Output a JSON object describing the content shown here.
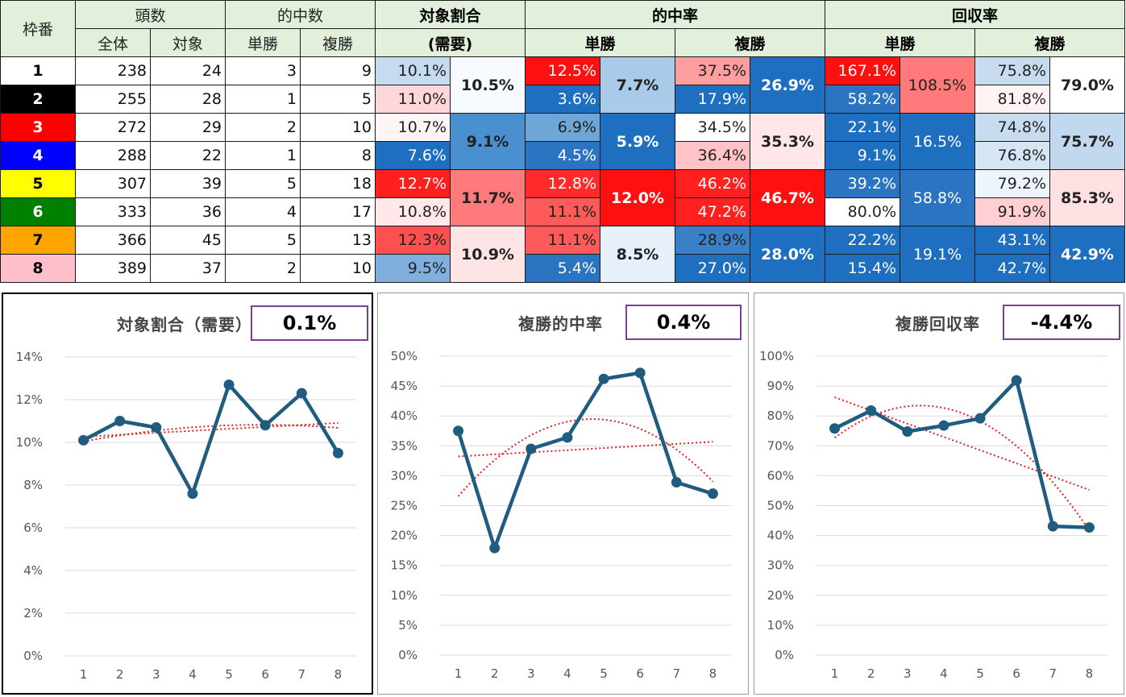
{
  "table": {
    "headers": {
      "waku": "枠番",
      "count": "頭数",
      "count_all": "全体",
      "count_target": "対象",
      "hits": "的中数",
      "hits_win": "単勝",
      "hits_place": "複勝",
      "share": "対象割合",
      "share_sub": "(需要)",
      "hit_rate": "的中率",
      "hit_rate_win": "単勝",
      "hit_rate_place": "複勝",
      "return_rate": "回収率",
      "return_rate_win": "単勝",
      "return_rate_place": "複勝"
    },
    "rows": [
      {
        "waku": "1",
        "all": "238",
        "target": "24",
        "win_hits": "3",
        "place_hits": "9",
        "share": "10.1%",
        "win_rate": "12.5%",
        "place_rate": "37.5%",
        "win_return": "167.1%",
        "place_return": "75.8%"
      },
      {
        "waku": "2",
        "all": "255",
        "target": "28",
        "win_hits": "1",
        "place_hits": "5",
        "share": "11.0%",
        "win_rate": "3.6%",
        "place_rate": "17.9%",
        "win_return": "58.2%",
        "place_return": "81.8%"
      },
      {
        "waku": "3",
        "all": "272",
        "target": "29",
        "win_hits": "2",
        "place_hits": "10",
        "share": "10.7%",
        "win_rate": "6.9%",
        "place_rate": "34.5%",
        "win_return": "22.1%",
        "place_return": "74.8%"
      },
      {
        "waku": "4",
        "all": "288",
        "target": "22",
        "win_hits": "1",
        "place_hits": "8",
        "share": "7.6%",
        "win_rate": "4.5%",
        "place_rate": "36.4%",
        "win_return": "9.1%",
        "place_return": "76.8%"
      },
      {
        "waku": "5",
        "all": "307",
        "target": "39",
        "win_hits": "5",
        "place_hits": "18",
        "share": "12.7%",
        "win_rate": "12.8%",
        "place_rate": "46.2%",
        "win_return": "39.2%",
        "place_return": "79.2%"
      },
      {
        "waku": "6",
        "all": "333",
        "target": "36",
        "win_hits": "4",
        "place_hits": "17",
        "share": "10.8%",
        "win_rate": "11.1%",
        "place_rate": "47.2%",
        "win_return": "80.0%",
        "place_return": "91.9%"
      },
      {
        "waku": "7",
        "all": "366",
        "target": "45",
        "win_hits": "5",
        "place_hits": "13",
        "share": "12.3%",
        "win_rate": "11.1%",
        "place_rate": "28.9%",
        "win_return": "22.2%",
        "place_return": "43.1%"
      },
      {
        "waku": "8",
        "all": "389",
        "target": "37",
        "win_hits": "2",
        "place_hits": "10",
        "share": "9.5%",
        "win_rate": "5.4%",
        "place_rate": "27.0%",
        "win_return": "15.4%",
        "place_return": "42.7%"
      }
    ],
    "pairs": [
      {
        "share": "10.5%",
        "win_rate": "7.7%",
        "place_rate": "26.9%",
        "win_return": "108.5%",
        "place_return": "79.0%"
      },
      {
        "share": "9.1%",
        "win_rate": "5.9%",
        "place_rate": "35.3%",
        "win_return": "16.5%",
        "place_return": "75.7%"
      },
      {
        "share": "11.7%",
        "win_rate": "12.0%",
        "place_rate": "46.7%",
        "win_return": "58.8%",
        "place_return": "85.3%"
      },
      {
        "share": "10.9%",
        "win_rate": "8.5%",
        "place_rate": "28.0%",
        "win_return": "19.1%",
        "place_return": "42.9%"
      }
    ],
    "waku_colors": {
      "bg": [
        "#ffffff",
        "#000000",
        "#ff0000",
        "#0000ff",
        "#ffff00",
        "#008000",
        "#ffa500",
        "#ffc0cb"
      ],
      "fg": [
        "#000000",
        "#ffffff",
        "#ffffff",
        "#ffffff",
        "#000000",
        "#ffffff",
        "#000000",
        "#000000"
      ]
    },
    "cell_colors": {
      "share": [
        "#c5dbef",
        "#ffd6d9",
        "#fff5f5",
        "#1f6fc0",
        "#ff1f1f",
        "#ffe8ea",
        "#ff5050",
        "#7fb0dd"
      ],
      "share_pair": [
        "#f7fbff",
        "#4a90d0",
        "#ff7a7a",
        "#ffe4e6"
      ],
      "win_rate": [
        "#ff1010",
        "#1f6fc0",
        "#6fa6d8",
        "#2a74c2",
        "#ff2a2a",
        "#ff5a5a",
        "#ff5a5a",
        "#2a74c2"
      ],
      "win_rate_pair": [
        "#a9cbe9",
        "#1f6fc0",
        "#ff1010",
        "#e6f0fa"
      ],
      "place_rate": [
        "#ff9e9e",
        "#1f6fc0",
        "#ffffff",
        "#ffc2c6",
        "#ff2020",
        "#ff2020",
        "#3a80c8",
        "#1f6fc0"
      ],
      "place_rate_pair": [
        "#1f6fc0",
        "#ffe6e8",
        "#ff1010",
        "#1f6fc0"
      ],
      "win_return": [
        "#ff1010",
        "#2a74c2",
        "#1f6fc0",
        "#1f6fc0",
        "#2a74c2",
        "#ffffff",
        "#1f6fc0",
        "#1f6fc0"
      ],
      "win_return_pair": [
        "#ff7a7a",
        "#1f6fc0",
        "#2a74c2",
        "#1f6fc0"
      ],
      "place_return": [
        "#c8dcef",
        "#fff3f4",
        "#c8dcef",
        "#d6e5f3",
        "#eef4fb",
        "#ffcfd3",
        "#1f6fc0",
        "#1f6fc0"
      ],
      "place_return_pair": [
        "#ffffff",
        "#c2d8ee",
        "#ffe0e3",
        "#1f6fc0"
      ]
    }
  },
  "charts": [
    {
      "title": "対象割合（需要）",
      "diff": "0.1%"
    },
    {
      "title": "複勝的中率",
      "diff": "0.4%"
    },
    {
      "title": "複勝回収率",
      "diff": "-4.4%"
    }
  ],
  "chart_data": [
    {
      "type": "line",
      "title": "対象割合（需要）",
      "categories": [
        "1",
        "2",
        "3",
        "4",
        "5",
        "6",
        "7",
        "8"
      ],
      "series": [
        {
          "values": [
            10.1,
            11.0,
            10.7,
            7.6,
            12.7,
            10.8,
            12.3,
            9.5
          ]
        }
      ],
      "ylim": [
        0,
        14
      ],
      "yticks": [
        0,
        2,
        4,
        6,
        8,
        10,
        12,
        14
      ],
      "unit": "%",
      "trendlines": [
        "linear",
        "polynomial"
      ],
      "grid": true,
      "line_color": "#1f5c80",
      "trend_color": "#e02020"
    },
    {
      "type": "line",
      "title": "複勝的中率",
      "categories": [
        "1",
        "2",
        "3",
        "4",
        "5",
        "6",
        "7",
        "8"
      ],
      "series": [
        {
          "values": [
            37.5,
            17.9,
            34.5,
            36.4,
            46.2,
            47.2,
            28.9,
            27.0
          ]
        }
      ],
      "ylim": [
        0,
        50
      ],
      "yticks": [
        0,
        5,
        10,
        15,
        20,
        25,
        30,
        35,
        40,
        45,
        50
      ],
      "unit": "%",
      "trendlines": [
        "linear",
        "polynomial"
      ],
      "grid": true,
      "line_color": "#1f5c80",
      "trend_color": "#e02020"
    },
    {
      "type": "line",
      "title": "複勝回収率",
      "categories": [
        "1",
        "2",
        "3",
        "4",
        "5",
        "6",
        "7",
        "8"
      ],
      "series": [
        {
          "values": [
            75.8,
            81.8,
            74.8,
            76.8,
            79.2,
            91.9,
            43.1,
            42.7
          ]
        }
      ],
      "ylim": [
        0,
        100
      ],
      "yticks": [
        0,
        10,
        20,
        30,
        40,
        50,
        60,
        70,
        80,
        90,
        100
      ],
      "unit": "%",
      "trendlines": [
        "linear",
        "polynomial"
      ],
      "grid": true,
      "line_color": "#1f5c80",
      "trend_color": "#e02020"
    }
  ]
}
